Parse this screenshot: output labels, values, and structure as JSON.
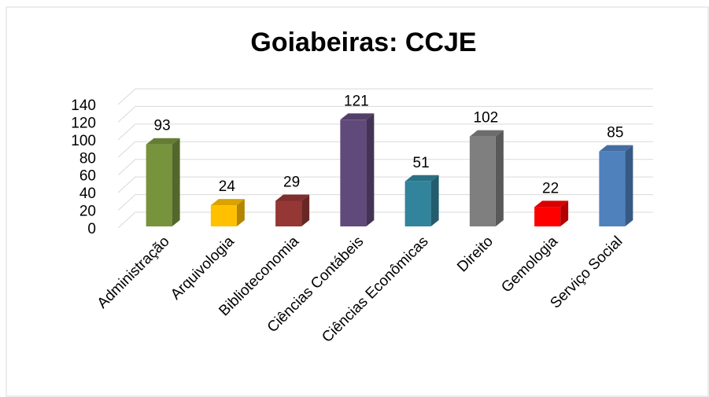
{
  "chart_data": {
    "type": "bar3d",
    "title": "Goiabeiras: CCJE",
    "categories": [
      "Administração",
      "Arquivologia",
      "Biblioteconomia",
      "Ciências Contábeis",
      "Ciências Econômicas",
      "Direito",
      "Gemologia",
      "Serviço Social"
    ],
    "values": [
      93,
      24,
      29,
      121,
      51,
      102,
      22,
      85
    ],
    "colors": [
      "#77933c",
      "#ffc000",
      "#953735",
      "#604a7b",
      "#31849b",
      "#7f7f7f",
      "#ff0000",
      "#4f81bd"
    ],
    "ylim": [
      0,
      140
    ],
    "yticks": [
      0,
      20,
      40,
      60,
      80,
      100,
      120,
      140
    ],
    "grid": true
  }
}
